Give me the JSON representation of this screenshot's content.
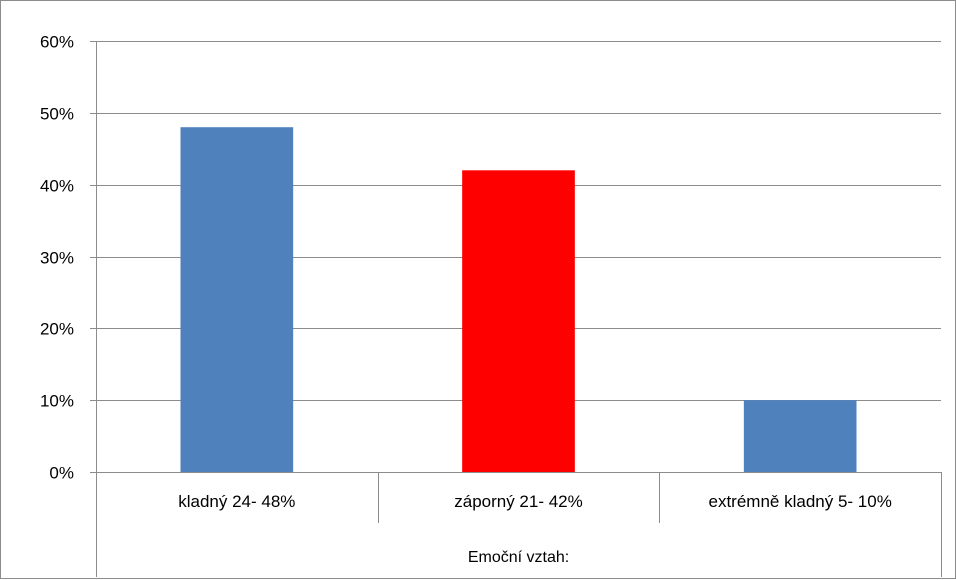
{
  "chart_data": {
    "type": "bar",
    "categories": [
      "kladný 24- 48%",
      "záporný 21- 42%",
      "extrémně kladný 5- 10%"
    ],
    "values": [
      48,
      42,
      10
    ],
    "colors": [
      "#4f81bd",
      "#ff0000",
      "#4f81bd"
    ],
    "title": "",
    "xlabel": "Emoční vztah:",
    "ylabel": "",
    "ylim": [
      0,
      60
    ],
    "yticks": [
      0,
      10,
      20,
      30,
      40,
      50,
      60
    ],
    "ytick_labels": [
      "0%",
      "10%",
      "20%",
      "30%",
      "40%",
      "50%",
      "60%"
    ],
    "grid": true,
    "legend": "none"
  }
}
